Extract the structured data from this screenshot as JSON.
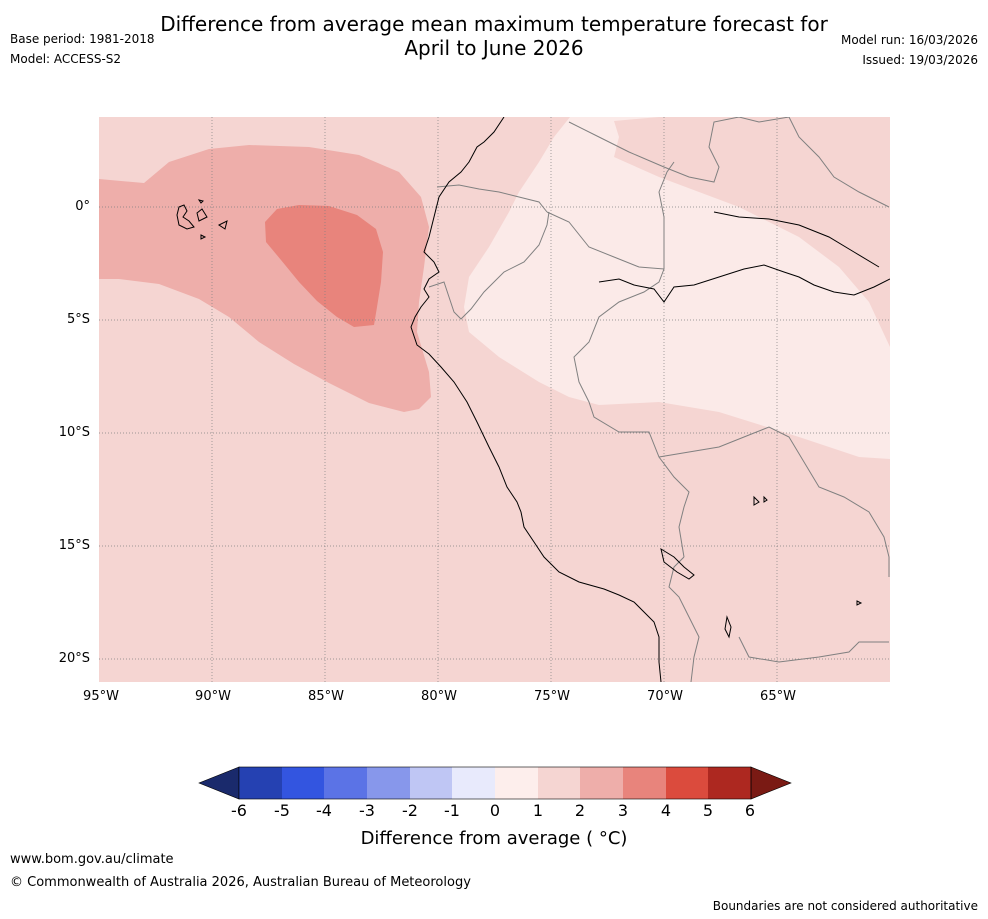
{
  "title": {
    "line1": "Difference from average mean maximum temperature forecast for",
    "line2": "April to June 2026"
  },
  "meta_left": {
    "base_period": "Base period: 1981-2018",
    "model": "Model: ACCESS-S2"
  },
  "meta_right": {
    "model_run": "Model run: 16/03/2026",
    "issued": "Issued: 19/03/2026"
  },
  "map": {
    "longitude_labels": [
      "95°W",
      "90°W",
      "85°W",
      "80°W",
      "75°W",
      "70°W",
      "65°W"
    ],
    "latitude_labels": [
      "0°",
      "5°S",
      "10°S",
      "15°S",
      "20°S"
    ],
    "extent": {
      "lon": [
        -95,
        -60
      ],
      "lat": [
        -21,
        4
      ]
    },
    "colors": {
      "class_0_1": "#fbeae8",
      "class_1_2": "#f5d5d2",
      "class_2_3": "#eeaeaa",
      "class_3_4": "#e8847c",
      "coast": "#000000",
      "borders": "#808080",
      "grid": "#808080"
    }
  },
  "colorbar": {
    "title": "Difference from average ( °C)",
    "ticks": [
      "-6",
      "-5",
      "-4",
      "-3",
      "-2",
      "-1",
      "0",
      "1",
      "2",
      "3",
      "4",
      "5",
      "6"
    ],
    "colors": [
      "#1a2a6c",
      "#2541b2",
      "#3355e0",
      "#5b73e6",
      "#8797eb",
      "#bfc6f4",
      "#e8eafc",
      "#fdeeec",
      "#f5d5d2",
      "#eeaeaa",
      "#e8847c",
      "#db4b3d",
      "#ad2820",
      "#7a1a14"
    ]
  },
  "footer": {
    "url": "www.bom.gov.au/climate",
    "copyright": "© Commonwealth of Australia 2026, Australian Bureau of Meteorology",
    "disclaimer": "Boundaries are not considered authoritative"
  }
}
